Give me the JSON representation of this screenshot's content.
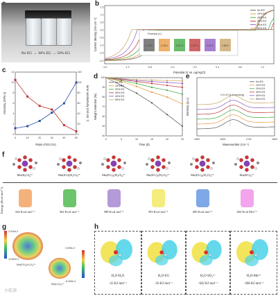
{
  "panel_labels": {
    "a": "a",
    "b": "b",
    "c": "c",
    "d": "d",
    "e": "e",
    "f": "f",
    "g": "g",
    "h": "h"
  },
  "photo": {
    "caption": "No EG → 30% EG → 50% EG"
  },
  "chart_data": [
    {
      "id": "b",
      "type": "line",
      "xlabel": "Potential (V vs. Ag/AgCl)",
      "ylabel": "Current density (mA cm⁻²)",
      "xlim": [
        -1.6,
        1.4
      ],
      "ylim": [
        -2.2,
        1.6
      ],
      "x_ticks": [
        "-1.6",
        "-1.2",
        "-0.8",
        "-0.4",
        "0.0",
        "0.4",
        "0.8",
        "1.2"
      ],
      "y_ticks": [
        "-2.0",
        "-1.5",
        "-1.0",
        "-0.5",
        "0.0",
        "0.5",
        "1.0",
        "1.5"
      ],
      "inset": {
        "title": "Potential (V)",
        "windows": [
          "1.73 V",
          "1.78 V",
          "2.12 V",
          "2.27 V",
          "2.47 V",
          "2.58 V"
        ],
        "colors": [
          "#555555",
          "#e8963a",
          "#3aa53a",
          "#c03232",
          "#8a55c0",
          "#c8a060"
        ]
      },
      "series": [
        {
          "name": "No EG",
          "color": "#555555",
          "onset_neg": -0.65,
          "onset_pos": 1.08
        },
        {
          "name": "10% EG",
          "color": "#e8963a",
          "onset_neg": -0.72,
          "onset_pos": 1.06
        },
        {
          "name": "20% EG",
          "color": "#3aa53a",
          "onset_neg": -0.82,
          "onset_pos": 1.3
        },
        {
          "name": "30% EG",
          "color": "#c03232",
          "onset_neg": -0.92,
          "onset_pos": 1.35
        },
        {
          "name": "40% EG",
          "color": "#8a55c0",
          "onset_neg": -1.02,
          "onset_pos": 1.4
        },
        {
          "name": "50% EG",
          "color": "#c8a060",
          "onset_neg": -1.12,
          "onset_pos": 1.45
        }
      ]
    },
    {
      "id": "c",
      "type": "line",
      "xlabel": "Ratio of EG (%)",
      "ylabel": "Viscosity (mPa s)",
      "y2label": "Ionic conductivity (mS cm⁻¹)",
      "categories": [
        "0",
        "10",
        "20",
        "30",
        "40",
        "50"
      ],
      "x": [
        0,
        10,
        20,
        30,
        40,
        50
      ],
      "ylim": [
        0,
        12
      ],
      "y2lim": [
        0,
        120
      ],
      "y_ticks": [
        "0",
        "2",
        "4",
        "6",
        "8",
        "10",
        "12"
      ],
      "y2_ticks": [
        "0",
        "20",
        "40",
        "60",
        "80",
        "100",
        "120"
      ],
      "series": [
        {
          "name": "Viscosity",
          "color": "#2a4fa8",
          "axis": "left",
          "values": [
            1.2,
            1.6,
            2.6,
            4.2,
            6.0,
            10.0
          ]
        },
        {
          "name": "Ionic conductivity",
          "color": "#c03232",
          "axis": "right",
          "values": [
            105,
            73,
            55,
            48,
            18,
            6
          ]
        }
      ]
    },
    {
      "id": "d",
      "type": "line",
      "xlabel": "Time (d)",
      "ylabel": "Weight retention (%)",
      "xlim": [
        0,
        25
      ],
      "ylim": [
        40,
        100
      ],
      "x_ticks": [
        "0",
        "5",
        "10",
        "15",
        "20",
        "25"
      ],
      "y_ticks": [
        "40",
        "50",
        "60",
        "70",
        "80",
        "90",
        "100"
      ],
      "x": [
        0,
        5,
        10,
        15,
        20,
        25
      ],
      "series": [
        {
          "name": "No EG",
          "color": "#555555",
          "values": [
            100,
            92,
            84,
            74,
            62,
            50
          ]
        },
        {
          "name": "10% EG",
          "color": "#e8963a",
          "values": [
            100,
            96,
            91,
            85,
            80,
            73
          ]
        },
        {
          "name": "20% EG",
          "color": "#3aa53a",
          "values": [
            100,
            97,
            94,
            90,
            87,
            83
          ]
        },
        {
          "name": "30% EG",
          "color": "#c03232",
          "values": [
            100,
            98,
            96,
            94,
            92,
            90
          ]
        },
        {
          "name": "40% EG",
          "color": "#8a55c0",
          "values": [
            100,
            98.5,
            97,
            96,
            95,
            94
          ]
        },
        {
          "name": "50% EG",
          "color": "#c8a060",
          "values": [
            100,
            99,
            98,
            97.5,
            97,
            96.5
          ]
        }
      ]
    },
    {
      "id": "e",
      "type": "line",
      "xlabel": "Wavenumber (cm⁻¹)",
      "ylabel": "Intensity (a.u.)",
      "xlim": [
        1500,
        1800
      ],
      "x_ticks": [
        "1500",
        "1600",
        "1700",
        "1800"
      ],
      "annotation": "H-O-H (O-H bending)",
      "series": [
        {
          "name": "No EG",
          "color": "#555555"
        },
        {
          "name": "10% EG",
          "color": "#e8963a"
        },
        {
          "name": "20% EG",
          "color": "#3aa53a"
        },
        {
          "name": "30% EG",
          "color": "#c03232"
        },
        {
          "name": "40% EG",
          "color": "#8a55c0"
        },
        {
          "name": "50% EG",
          "color": "#c8a060"
        }
      ]
    },
    {
      "id": "f",
      "type": "bar",
      "ylabel": "Energy (Kcal mol⁻¹)",
      "categories": [
        "Mn(H₂O)₆²⁺",
        "Mn(EG)(H₂O)₅²⁺",
        "Mn(EG)₂(H₂O)₄²⁺",
        "Mn(EG)₃(H₂O)₃²⁺",
        "Mn(EG)₄(H₂O)₂²⁺",
        "Mn(EG)₆²⁺"
      ],
      "values": [
        344,
        362,
        388,
        393,
        400,
        404
      ],
      "value_labels": [
        "344 Kcal mol⁻¹",
        "362 Kcal mol⁻¹",
        "388 Kcal mol⁻¹",
        "393 Kcal mol⁻¹",
        "400 Kcal mol⁻¹",
        "404 Kcal Mol⁻¹"
      ],
      "colors": [
        "#f4b27a",
        "#6cc46c",
        "#b49ad8",
        "#f4ec7c",
        "#7ea8e6",
        "#f2a4ec"
      ]
    }
  ],
  "panel_g": {
    "scale1_top": "3.410e-2",
    "scale1_bottom": "-6.000e-2",
    "scale2_top": "3.300e-2",
    "scale2_bottom": "-6.000e-2",
    "mol1": "Mn(EG)₂(H₂O)₄²⁺",
    "mol2": "Mn(H₂O)₆²⁺"
  },
  "panel_h": [
    {
      "pair": "H₂O-H₂O",
      "energy": "-22 KJ mol⁻¹"
    },
    {
      "pair": "H₂O-EG",
      "energy": "-56 KJ mol⁻¹"
    },
    {
      "pair": "H₂O-SO₄²⁻",
      "energy": "-642 KJ mol⁻¹"
    },
    {
      "pair": "H₂O-Mn²⁺",
      "energy": "-366 KJ mol⁻¹"
    }
  ],
  "watermark": "大能源"
}
